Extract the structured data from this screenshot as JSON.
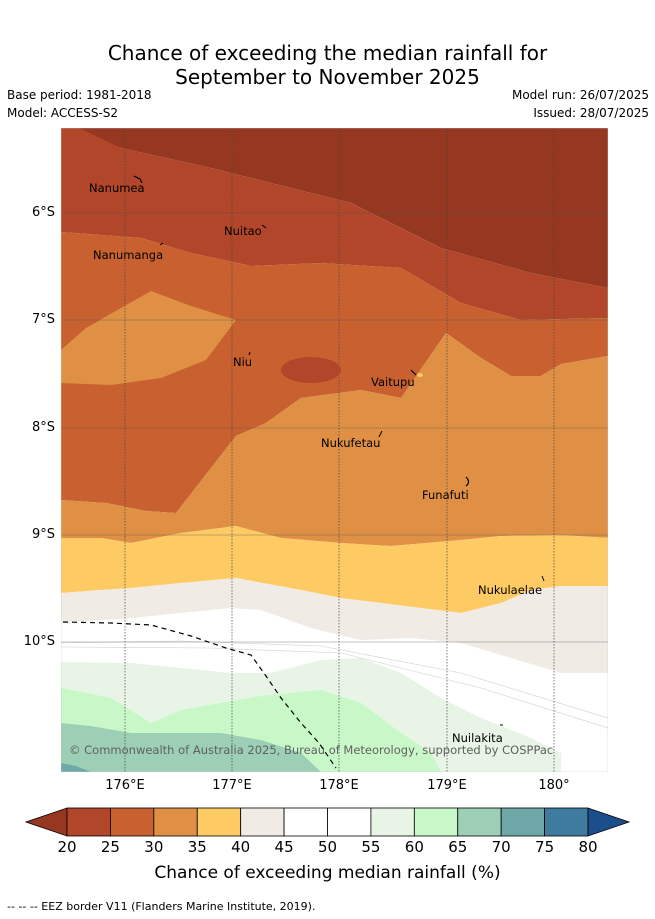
{
  "title": {
    "line1": "Chance of exceeding the median rainfall for",
    "line2": "September to November 2025"
  },
  "meta": {
    "base_period": "Base period: 1981-2018",
    "model": "Model: ACCESS-S2",
    "model_run": "Model run: 26/07/2025",
    "issued": "Issued: 28/07/2025"
  },
  "map": {
    "lat_labels": [
      "6°S",
      "7°S",
      "8°S",
      "9°S",
      "10°S"
    ],
    "lon_labels": [
      "176°E",
      "177°E",
      "178°E",
      "179°E",
      "180°"
    ],
    "places": [
      {
        "name": "Nanumea"
      },
      {
        "name": "Nuitao"
      },
      {
        "name": "Nanumanga"
      },
      {
        "name": "Niu"
      },
      {
        "name": "Vaitupu"
      },
      {
        "name": "Nukufetau"
      },
      {
        "name": "Funafuti"
      },
      {
        "name": "Nukulaelae"
      },
      {
        "name": "Nuilakita"
      }
    ],
    "credit": "© Commonwealth of Australia 2025, Bureau of Meteorology, supported by COSPPac"
  },
  "colorbar": {
    "ticks": [
      "20",
      "25",
      "30",
      "35",
      "40",
      "45",
      "50",
      "55",
      "60",
      "65",
      "70",
      "75",
      "80"
    ],
    "colors": [
      "#b1462a",
      "#c8612f",
      "#df9044",
      "#fdca64",
      "#f0ebe5",
      "#ffffff",
      "#ffffff",
      "#e8f4e6",
      "#c9f8c8",
      "#9dcfb7",
      "#6ea8a8",
      "#3e7b9e"
    ],
    "low_extend_color": "#963721",
    "high_extend_color": "#1d4e8c",
    "label": "Chance of exceeding median rainfall (%)"
  },
  "footer": "-- -- -- EEZ border V11 (Flanders Marine Institute, 2019)."
}
